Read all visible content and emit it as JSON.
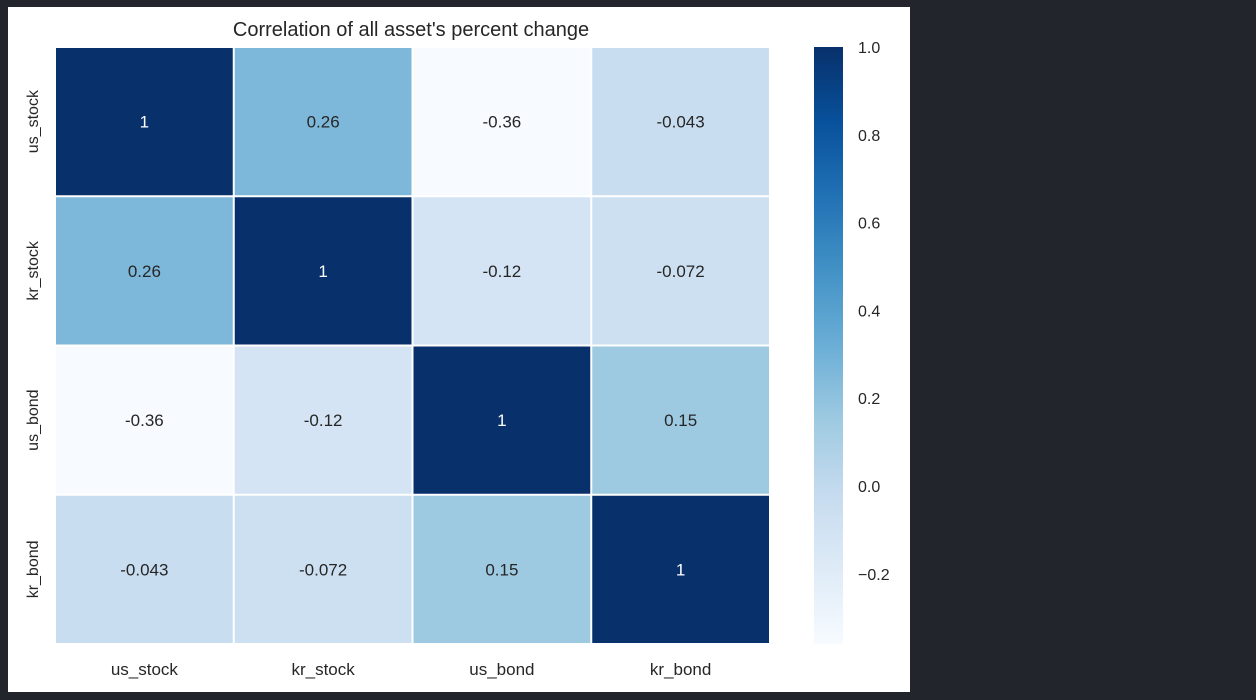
{
  "chart_data": {
    "type": "heatmap",
    "title": "Correlation of all asset's percent change",
    "xlabel": "",
    "ylabel": "",
    "rows": [
      "us_stock",
      "kr_stock",
      "us_bond",
      "kr_bond"
    ],
    "columns": [
      "us_stock",
      "kr_stock",
      "us_bond",
      "kr_bond"
    ],
    "values": [
      [
        1.0,
        0.26,
        -0.36,
        -0.043
      ],
      [
        0.26,
        1.0,
        -0.12,
        -0.072
      ],
      [
        -0.36,
        -0.12,
        1.0,
        0.15
      ],
      [
        -0.043,
        -0.072,
        0.15,
        1.0
      ]
    ],
    "annotations": [
      [
        "1",
        "0.26",
        "-0.36",
        "-0.043"
      ],
      [
        "0.26",
        "1",
        "-0.12",
        "-0.072"
      ],
      [
        "-0.36",
        "-0.12",
        "1",
        "0.15"
      ],
      [
        "-0.043",
        "-0.072",
        "0.15",
        "1"
      ]
    ],
    "colormap": "Blues",
    "vmin": -0.36,
    "vmax": 1.0,
    "colorbar_ticks": [
      "1.0",
      "0.8",
      "0.6",
      "0.4",
      "0.2",
      "0.0",
      "−0.2"
    ],
    "colorbar_tick_values": [
      1.0,
      0.8,
      0.6,
      0.4,
      0.2,
      0.0,
      -0.2
    ],
    "grid": false
  }
}
